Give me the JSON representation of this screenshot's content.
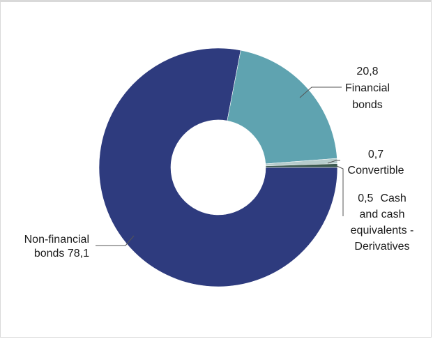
{
  "chart_data": {
    "type": "pie",
    "style": "donut",
    "title": "",
    "slices": [
      {
        "name_lines": [
          "Non-financial",
          "bonds  78,1"
        ],
        "value": 78.1,
        "value_label": "",
        "color": "#2e3b7e"
      },
      {
        "name_lines": [
          "Financial",
          "bonds"
        ],
        "value": 20.8,
        "value_label": "20,8",
        "color": "#5fa3b0"
      },
      {
        "name_lines": [
          "Convertible"
        ],
        "value": 0.7,
        "value_label": "0,7",
        "color": "#b6cccc"
      },
      {
        "name_lines": [
          "Cash",
          "and cash",
          "equivalents -",
          "Derivatives"
        ],
        "value": 0.5,
        "value_label": "0,5",
        "color": "#3d5a50"
      }
    ],
    "legend": "none"
  }
}
